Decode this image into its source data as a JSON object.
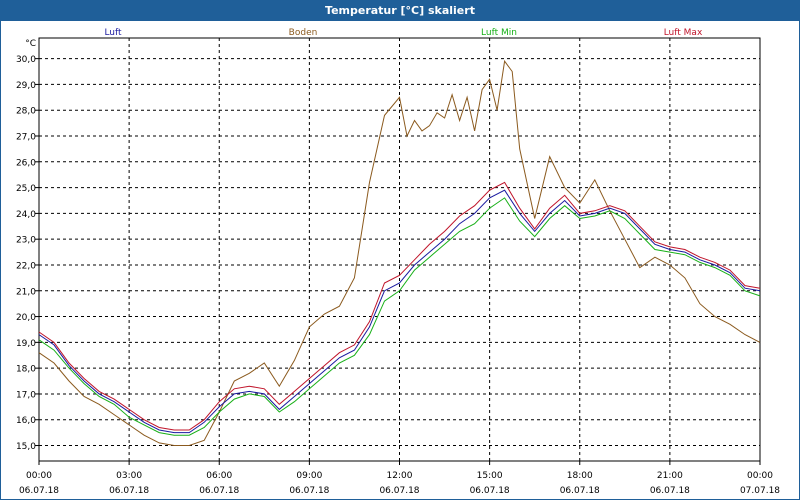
{
  "window": {
    "title": "Temperatur [°C] skaliert"
  },
  "chart_data": {
    "type": "line",
    "title": "Temperatur [°C] skaliert",
    "ylabel": "°C",
    "xlabel": "",
    "ylim": [
      14.4,
      30.8
    ],
    "xlim": [
      0,
      24
    ],
    "grid": true,
    "yticks": [
      15.0,
      16.0,
      17.0,
      18.0,
      19.0,
      20.0,
      21.0,
      22.0,
      23.0,
      24.0,
      25.0,
      26.0,
      27.0,
      28.0,
      29.0,
      30.0
    ],
    "ytick_labels": [
      "15,0",
      "16,0",
      "17,0",
      "18,0",
      "19,0",
      "20,0",
      "21,0",
      "22,0",
      "23,0",
      "24,0",
      "25,0",
      "26,0",
      "27,0",
      "28,0",
      "29,0",
      "30,0"
    ],
    "xticks": [
      {
        "x": 0,
        "time": "00:00",
        "date": "06.07.18"
      },
      {
        "x": 3,
        "time": "03:00",
        "date": "06.07.18"
      },
      {
        "x": 6,
        "time": "06:00",
        "date": "06.07.18"
      },
      {
        "x": 9,
        "time": "09:00",
        "date": "06.07.18"
      },
      {
        "x": 12,
        "time": "12:00",
        "date": "06.07.18"
      },
      {
        "x": 15,
        "time": "15:00",
        "date": "06.07.18"
      },
      {
        "x": 18,
        "time": "18:00",
        "date": "06.07.18"
      },
      {
        "x": 21,
        "time": "21:00",
        "date": "06.07.18"
      },
      {
        "x": 24,
        "time": "00:00",
        "date": "07.07.18"
      }
    ],
    "series": [
      {
        "name": "Luft",
        "color": "#1a1aa0",
        "legend_pos": "left",
        "x": [
          0,
          0.5,
          1,
          1.5,
          2,
          2.5,
          3,
          3.5,
          4,
          4.5,
          5,
          5.5,
          6,
          6.5,
          7,
          7.5,
          8,
          8.5,
          9,
          9.5,
          10,
          10.5,
          11,
          11.5,
          12,
          12.5,
          13,
          13.5,
          14,
          14.5,
          15,
          15.5,
          16,
          16.5,
          17,
          17.5,
          18,
          18.5,
          19,
          19.5,
          20,
          20.5,
          21,
          21.5,
          22,
          22.5,
          23,
          23.5,
          24
        ],
        "values": [
          19.3,
          18.9,
          18.1,
          17.5,
          17.0,
          16.7,
          16.3,
          15.9,
          15.6,
          15.5,
          15.5,
          15.9,
          16.5,
          17.0,
          17.1,
          17.0,
          16.4,
          16.9,
          17.4,
          17.9,
          18.4,
          18.7,
          19.6,
          21.0,
          21.3,
          22.0,
          22.5,
          23.0,
          23.6,
          24.0,
          24.6,
          24.9,
          24.0,
          23.3,
          24.0,
          24.5,
          23.9,
          24.0,
          24.2,
          24.0,
          23.4,
          22.8,
          22.6,
          22.5,
          22.2,
          22.0,
          21.7,
          21.1,
          21.0
        ]
      },
      {
        "name": "Boden",
        "color": "#8b5a1e",
        "legend_pos": "center",
        "x": [
          0,
          0.5,
          1,
          1.5,
          2,
          2.5,
          3,
          3.5,
          4,
          4.5,
          5,
          5.5,
          6,
          6.5,
          7,
          7.5,
          8,
          8.5,
          9,
          9.5,
          10,
          10.5,
          11,
          11.5,
          12,
          12.25,
          12.5,
          12.75,
          13,
          13.25,
          13.5,
          13.75,
          14,
          14.25,
          14.5,
          14.75,
          15,
          15.25,
          15.5,
          15.75,
          16,
          16.5,
          17,
          17.5,
          18,
          18.5,
          19,
          19.5,
          20,
          20.5,
          21,
          21.5,
          22,
          22.5,
          23,
          23.5,
          24
        ],
        "values": [
          18.6,
          18.2,
          17.5,
          16.9,
          16.6,
          16.2,
          15.8,
          15.4,
          15.1,
          15.0,
          15.0,
          15.2,
          16.3,
          17.5,
          17.8,
          18.2,
          17.3,
          18.3,
          19.6,
          20.1,
          20.4,
          21.5,
          25.2,
          27.8,
          28.5,
          27.0,
          27.6,
          27.2,
          27.4,
          27.9,
          27.7,
          28.6,
          27.6,
          28.5,
          27.2,
          28.8,
          29.2,
          28.0,
          29.9,
          29.5,
          26.5,
          23.8,
          26.2,
          25.0,
          24.4,
          25.3,
          24.1,
          23.0,
          21.9,
          22.3,
          22.0,
          21.5,
          20.5,
          20.0,
          19.7,
          19.3,
          19.0
        ]
      },
      {
        "name": "Luft Min",
        "color": "#18b018",
        "legend_pos": "center-right",
        "x": [
          0,
          0.5,
          1,
          1.5,
          2,
          2.5,
          3,
          3.5,
          4,
          4.5,
          5,
          5.5,
          6,
          6.5,
          7,
          7.5,
          8,
          8.5,
          9,
          9.5,
          10,
          10.5,
          11,
          11.5,
          12,
          12.5,
          13,
          13.5,
          14,
          14.5,
          15,
          15.5,
          16,
          16.5,
          17,
          17.5,
          18,
          18.5,
          19,
          19.5,
          20,
          20.5,
          21,
          21.5,
          22,
          22.5,
          23,
          23.5,
          24
        ],
        "values": [
          19.1,
          18.7,
          18.0,
          17.4,
          16.9,
          16.6,
          16.1,
          15.8,
          15.5,
          15.4,
          15.4,
          15.7,
          16.3,
          16.8,
          17.0,
          16.9,
          16.3,
          16.7,
          17.2,
          17.7,
          18.2,
          18.5,
          19.3,
          20.6,
          21.0,
          21.8,
          22.3,
          22.8,
          23.3,
          23.6,
          24.2,
          24.6,
          23.7,
          23.1,
          23.8,
          24.3,
          23.8,
          23.9,
          24.1,
          23.8,
          23.2,
          22.6,
          22.5,
          22.4,
          22.1,
          21.9,
          21.6,
          21.0,
          20.8
        ]
      },
      {
        "name": "Luft Max",
        "color": "#c0142a",
        "legend_pos": "right",
        "x": [
          0,
          0.5,
          1,
          1.5,
          2,
          2.5,
          3,
          3.5,
          4,
          4.5,
          5,
          5.5,
          6,
          6.5,
          7,
          7.5,
          8,
          8.5,
          9,
          9.5,
          10,
          10.5,
          11,
          11.5,
          12,
          12.5,
          13,
          13.5,
          14,
          14.5,
          15,
          15.5,
          16,
          16.5,
          17,
          17.5,
          18,
          18.5,
          19,
          19.5,
          20,
          20.5,
          21,
          21.5,
          22,
          22.5,
          23,
          23.5,
          24
        ],
        "values": [
          19.4,
          19.0,
          18.2,
          17.6,
          17.1,
          16.8,
          16.4,
          16.0,
          15.7,
          15.6,
          15.6,
          16.0,
          16.7,
          17.2,
          17.3,
          17.2,
          16.6,
          17.1,
          17.6,
          18.1,
          18.6,
          18.9,
          19.8,
          21.3,
          21.6,
          22.2,
          22.8,
          23.3,
          23.9,
          24.3,
          24.9,
          25.2,
          24.2,
          23.4,
          24.2,
          24.7,
          24.0,
          24.1,
          24.3,
          24.1,
          23.5,
          22.9,
          22.7,
          22.6,
          22.3,
          22.1,
          21.8,
          21.2,
          21.1
        ]
      }
    ]
  }
}
